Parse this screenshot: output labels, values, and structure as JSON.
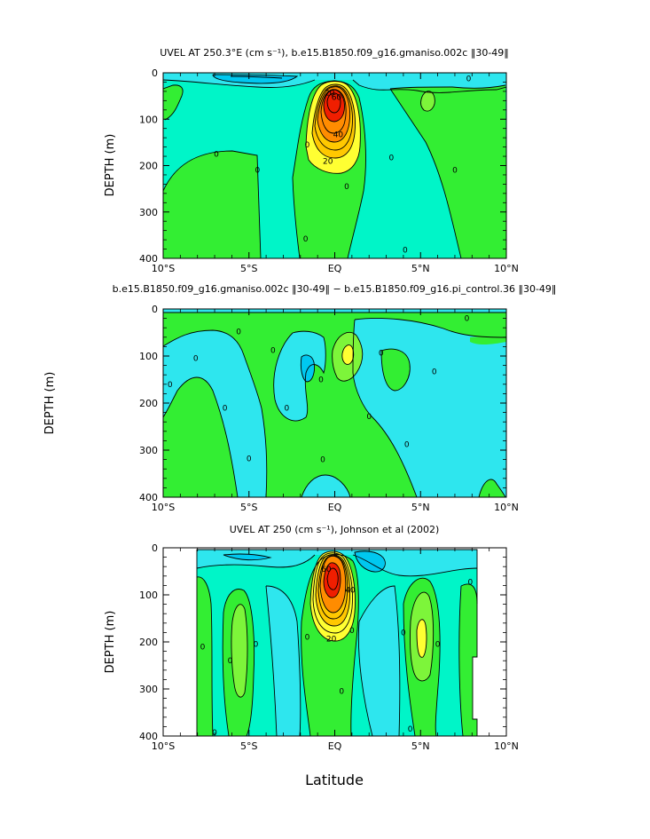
{
  "x_label": "Latitude",
  "colors": {
    "deep_cyan": "#00c8f0",
    "mid_cyan": "#2ee6ee",
    "pale_cyan": "#70ffe8",
    "aqua": "#00f5c8",
    "green": "#33ee33",
    "lime": "#7df53a",
    "yellow": "#ffff32",
    "gold": "#ffc800",
    "orange": "#ff8c00",
    "red": "#f01e00"
  },
  "chart_data": [
    {
      "type": "contour",
      "title": "UVEL AT 250.3°E (cm s⁻¹), b.e15.B1850.f09_g16.gmaniso.002c ‖30-49‖",
      "ylabel": "DEPTH (m)",
      "x_ticks": [
        "10°S",
        "5°S",
        "EQ",
        "5°N",
        "10°N"
      ],
      "x_tick_values": [
        -10,
        -5,
        0,
        5,
        10
      ],
      "y_ticks": [
        "0",
        "100",
        "200",
        "300",
        "400"
      ],
      "y_tick_values": [
        0,
        100,
        200,
        300,
        400
      ],
      "xlim": [
        -10,
        10
      ],
      "ylim": [
        400,
        0
      ],
      "contour_labels": [
        {
          "text": "0",
          "lat": -6.9,
          "depth": 175
        },
        {
          "text": "0",
          "lat": -4.5,
          "depth": 210
        },
        {
          "text": "0",
          "lat": -1.6,
          "depth": 155
        },
        {
          "text": "0",
          "lat": -1.7,
          "depth": 358
        },
        {
          "text": "0",
          "lat": 0.7,
          "depth": 245
        },
        {
          "text": "0",
          "lat": 3.3,
          "depth": 183
        },
        {
          "text": "0",
          "lat": 4.1,
          "depth": 382
        },
        {
          "text": "0",
          "lat": 7.0,
          "depth": 210
        },
        {
          "text": "0",
          "lat": 7.8,
          "depth": 12
        },
        {
          "text": "20",
          "lat": -0.3,
          "depth": 43
        },
        {
          "text": "20",
          "lat": -0.4,
          "depth": 190
        },
        {
          "text": "40",
          "lat": 0.2,
          "depth": 133
        },
        {
          "text": "60",
          "lat": 0.1,
          "depth": 53
        }
      ]
    },
    {
      "type": "contour",
      "title": "b.e15.B1850.f09_g16.gmaniso.002c ‖30-49‖ − b.e15.B1850.f09_g16.pi_control.36 ‖30-49‖",
      "ylabel": "DEPTH (m)",
      "x_ticks": [
        "10°S",
        "5°S",
        "EQ",
        "5°N",
        "10°N"
      ],
      "x_tick_values": [
        -10,
        -5,
        0,
        5,
        10
      ],
      "y_ticks": [
        "0",
        "100",
        "200",
        "300",
        "400"
      ],
      "y_tick_values": [
        0,
        100,
        200,
        300,
        400
      ],
      "xlim": [
        -10,
        10
      ],
      "ylim": [
        400,
        0
      ],
      "contour_labels": [
        {
          "text": "0",
          "lat": -9.6,
          "depth": 160
        },
        {
          "text": "0",
          "lat": -8.1,
          "depth": 105
        },
        {
          "text": "0",
          "lat": -6.4,
          "depth": 210
        },
        {
          "text": "0",
          "lat": -5.6,
          "depth": 48
        },
        {
          "text": "0",
          "lat": -5.0,
          "depth": 318
        },
        {
          "text": "0",
          "lat": -3.6,
          "depth": 88
        },
        {
          "text": "0",
          "lat": -2.8,
          "depth": 210
        },
        {
          "text": "0",
          "lat": -0.8,
          "depth": 150
        },
        {
          "text": "0",
          "lat": -0.7,
          "depth": 320
        },
        {
          "text": "0",
          "lat": 2.0,
          "depth": 228
        },
        {
          "text": "0",
          "lat": 2.7,
          "depth": 93
        },
        {
          "text": "0",
          "lat": 4.2,
          "depth": 288
        },
        {
          "text": "0",
          "lat": 5.8,
          "depth": 133
        },
        {
          "text": "0",
          "lat": 7.7,
          "depth": 20
        }
      ]
    },
    {
      "type": "contour",
      "title": "UVEL AT 250 (cm s⁻¹), Johnson et al (2002)",
      "ylabel": "DEPTH (m)",
      "x_ticks": [
        "10°S",
        "5°S",
        "EQ",
        "5°N",
        "10°N"
      ],
      "x_tick_values": [
        -10,
        -5,
        0,
        5,
        10
      ],
      "y_ticks": [
        "0",
        "100",
        "200",
        "300",
        "400"
      ],
      "y_tick_values": [
        0,
        100,
        200,
        300,
        400
      ],
      "xlim": [
        -10,
        10
      ],
      "ylim": [
        400,
        0
      ],
      "data_extent_lat": [
        -8,
        8.2
      ],
      "contour_labels": [
        {
          "text": "0",
          "lat": -7.7,
          "depth": 210
        },
        {
          "text": "0",
          "lat": -6.1,
          "depth": 240
        },
        {
          "text": "0",
          "lat": -4.6,
          "depth": 205
        },
        {
          "text": "0",
          "lat": -7.0,
          "depth": 392
        },
        {
          "text": "0",
          "lat": -1.6,
          "depth": 190
        },
        {
          "text": "0",
          "lat": 1.0,
          "depth": 175
        },
        {
          "text": "0",
          "lat": 0.4,
          "depth": 305
        },
        {
          "text": "0",
          "lat": 4.0,
          "depth": 180
        },
        {
          "text": "0",
          "lat": 6.0,
          "depth": 205
        },
        {
          "text": "0",
          "lat": 4.4,
          "depth": 385
        },
        {
          "text": "0",
          "lat": 7.9,
          "depth": 73
        },
        {
          "text": "20",
          "lat": -0.2,
          "depth": 193
        },
        {
          "text": "40",
          "lat": 0.9,
          "depth": 90
        },
        {
          "text": "60",
          "lat": -0.5,
          "depth": 45
        }
      ]
    }
  ]
}
